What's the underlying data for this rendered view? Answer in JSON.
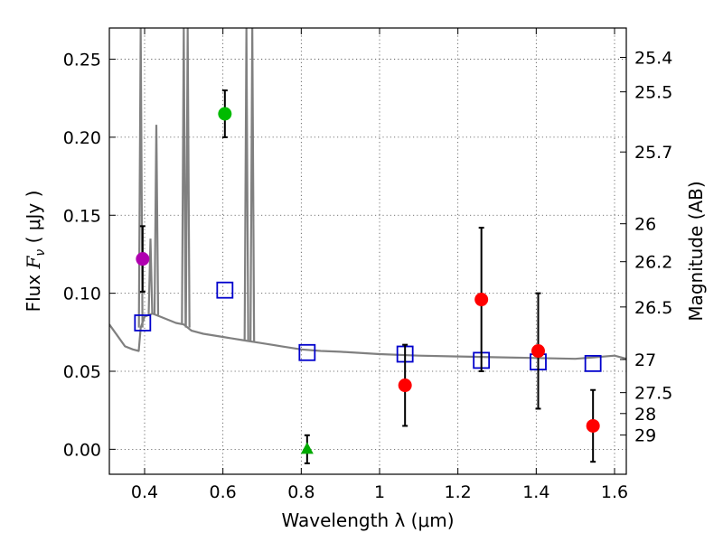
{
  "chart_data": {
    "type": "scatter",
    "xlabel": "Wavelength  λ (μm)",
    "ylabel_prefix": "Flux  ",
    "ylabel_var": "F",
    "ylabel_sub": "ν",
    "ylabel_suffix": "  ( μJy )",
    "y2label": "Magnitude (AB)",
    "xlim": [
      0.31,
      1.63
    ],
    "ylim": [
      -0.016,
      0.27
    ],
    "grid": true,
    "x_ticks": [
      {
        "value": 0.4,
        "label": "0.4"
      },
      {
        "value": 0.6,
        "label": "0.6"
      },
      {
        "value": 0.8,
        "label": "0.8"
      },
      {
        "value": 1.0,
        "label": "1"
      },
      {
        "value": 1.2,
        "label": "1.2"
      },
      {
        "value": 1.4,
        "label": "1.4"
      },
      {
        "value": 1.6,
        "label": "1.6"
      }
    ],
    "y_ticks": [
      {
        "value": 0.0,
        "label": "0.00"
      },
      {
        "value": 0.05,
        "label": "0.05"
      },
      {
        "value": 0.1,
        "label": "0.10"
      },
      {
        "value": 0.15,
        "label": "0.15"
      },
      {
        "value": 0.2,
        "label": "0.20"
      },
      {
        "value": 0.25,
        "label": "0.25"
      }
    ],
    "mag_ticks": [
      {
        "value": 25.4,
        "label": "25.4"
      },
      {
        "value": 25.5,
        "label": "25.5"
      },
      {
        "value": 25.7,
        "label": "25.7"
      },
      {
        "value": 26,
        "label": "26"
      },
      {
        "value": 26.2,
        "label": "26.2"
      },
      {
        "value": 26.5,
        "label": "26.5"
      },
      {
        "value": 27,
        "label": "27"
      },
      {
        "value": 27.5,
        "label": "27.5"
      },
      {
        "value": 28,
        "label": "28"
      },
      {
        "value": 29,
        "label": "29"
      }
    ],
    "spectrum": {
      "name": "model-sed",
      "color": "#808080",
      "x": [
        0.31,
        0.33,
        0.35,
        0.37,
        0.385,
        0.39,
        0.4,
        0.42,
        0.44,
        0.46,
        0.48,
        0.5,
        0.52,
        0.55,
        0.6,
        0.65,
        0.7,
        0.75,
        0.8,
        0.85,
        0.9,
        1.0,
        1.1,
        1.2,
        1.3,
        1.4,
        1.5,
        1.55,
        1.6,
        1.63
      ],
      "y": [
        0.08,
        0.073,
        0.066,
        0.064,
        0.063,
        0.078,
        0.085,
        0.087,
        0.085,
        0.083,
        0.081,
        0.08,
        0.076,
        0.074,
        0.072,
        0.07,
        0.068,
        0.066,
        0.064,
        0.063,
        0.0625,
        0.061,
        0.06,
        0.0595,
        0.059,
        0.0585,
        0.058,
        0.059,
        0.06,
        0.058
      ],
      "lines": [
        {
          "x": 0.39,
          "peak": 0.27
        },
        {
          "x": 0.43,
          "peak": 0.208
        },
        {
          "x": 0.415,
          "peak": 0.135
        },
        {
          "x": 0.5,
          "peak": 0.27
        },
        {
          "x": 0.51,
          "peak": 0.27
        },
        {
          "x": 0.66,
          "peak": 0.27
        },
        {
          "x": 0.675,
          "peak": 0.27
        }
      ]
    },
    "model_photometry": {
      "name": "model-band-flux",
      "marker": "open-square",
      "color": "#0000cc",
      "x": [
        0.395,
        0.605,
        0.815,
        1.065,
        1.26,
        1.405,
        1.545
      ],
      "y": [
        0.081,
        0.102,
        0.062,
        0.061,
        0.057,
        0.056,
        0.055
      ]
    },
    "observed_photometry": [
      {
        "x": 0.395,
        "y": 0.122,
        "err": 0.021,
        "color": "#b000b0",
        "marker": "circle"
      },
      {
        "x": 0.605,
        "y": 0.215,
        "err": 0.015,
        "color": "#00bb00",
        "marker": "circle"
      },
      {
        "x": 0.815,
        "y": 0.0,
        "err": 0.009,
        "color": "#00aa00",
        "marker": "triangle"
      },
      {
        "x": 1.065,
        "y": 0.041,
        "err": 0.026,
        "color": "#ff0000",
        "marker": "circle"
      },
      {
        "x": 1.26,
        "y": 0.096,
        "err": 0.046,
        "color": "#ff0000",
        "marker": "circle"
      },
      {
        "x": 1.405,
        "y": 0.063,
        "err": 0.037,
        "color": "#ff0000",
        "marker": "circle"
      },
      {
        "x": 1.545,
        "y": 0.015,
        "err": 0.023,
        "color": "#ff0000",
        "marker": "circle"
      }
    ]
  }
}
